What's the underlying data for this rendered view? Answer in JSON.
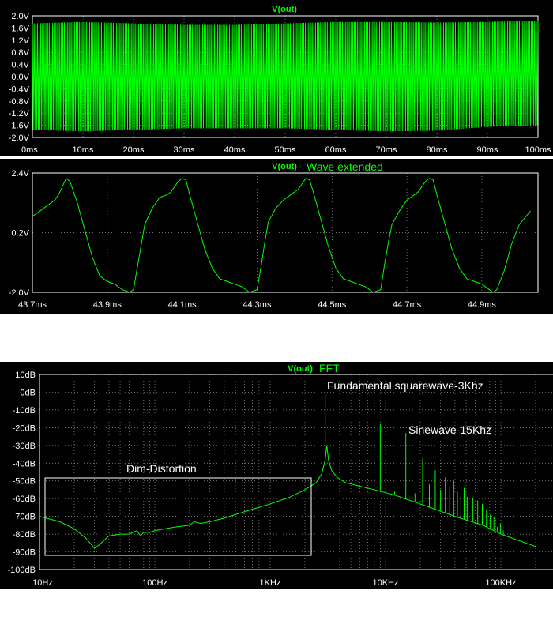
{
  "colors": {
    "trace": "#00ff00",
    "background": "#000000",
    "text": "#ffffff"
  },
  "chart_data": [
    {
      "type": "line",
      "title": "V(out)",
      "xlabel": "",
      "ylabel": "",
      "xlim": [
        0,
        100
      ],
      "ylim": [
        -2.0,
        2.0
      ],
      "x_ticks": [
        "0ms",
        "10ms",
        "20ms",
        "30ms",
        "40ms",
        "50ms",
        "60ms",
        "70ms",
        "80ms",
        "90ms",
        "100ms"
      ],
      "y_ticks": [
        "2.0V",
        "1.6V",
        "1.2V",
        "0.8V",
        "0.4V",
        "0.0V",
        "-0.4V",
        "-0.8V",
        "-1.2V",
        "-1.6V",
        "-2.0V"
      ],
      "grid": true,
      "series": [
        {
          "name": "V(out)",
          "x_ms": [
            0,
            10,
            20,
            30,
            40,
            50,
            60,
            70,
            80,
            90,
            100
          ],
          "peak_v": [
            1.75,
            1.8,
            1.75,
            1.7,
            1.7,
            1.75,
            1.8,
            1.8,
            1.78,
            1.8,
            1.85
          ],
          "trough_v": [
            -1.75,
            -1.8,
            -1.75,
            -1.7,
            -1.7,
            -1.7,
            -1.75,
            -1.8,
            -1.78,
            -1.65,
            -1.6
          ],
          "frequency_hz": 3000
        }
      ]
    },
    {
      "type": "line",
      "title": "V(out)",
      "subtitle": "Wave extended",
      "xlim": [
        43.7,
        45.05
      ],
      "ylim": [
        -2.0,
        2.4
      ],
      "x_ticks": [
        "43.7ms",
        "43.9ms",
        "44.1ms",
        "44.3ms",
        "44.5ms",
        "44.7ms",
        "44.9ms"
      ],
      "y_ticks": [
        "2.4V",
        "0.2V",
        "-2.0V"
      ],
      "grid": true,
      "series": [
        {
          "name": "V(out)",
          "x_ms": [
            43.7,
            43.72,
            43.74,
            43.76,
            43.77,
            43.78,
            43.79,
            43.8,
            43.82,
            43.84,
            43.86,
            43.88,
            43.9,
            43.92,
            43.94,
            43.96,
            43.97,
            43.98,
            43.99,
            44.0,
            44.02,
            44.04,
            44.06,
            44.07,
            44.08,
            44.09,
            44.1,
            44.11,
            44.12,
            44.14,
            44.16,
            44.18,
            44.2,
            44.22,
            44.24,
            44.26,
            44.28,
            44.3,
            44.31,
            44.32,
            44.33,
            44.35,
            44.37,
            44.39,
            44.4,
            44.41,
            44.42,
            44.43,
            44.44,
            44.45,
            44.47,
            44.49,
            44.51,
            44.53,
            44.55,
            44.57,
            44.59,
            44.61,
            44.63,
            44.64,
            44.65,
            44.66,
            44.68,
            44.7,
            44.72,
            44.73,
            44.74,
            44.75,
            44.76,
            44.77,
            44.78,
            44.8,
            44.82,
            44.84,
            44.86,
            44.88,
            44.9,
            44.92,
            44.93,
            44.94,
            44.96,
            44.98,
            45.0,
            45.03
          ],
          "y_v": [
            0.8,
            1.0,
            1.2,
            1.4,
            1.6,
            1.9,
            2.2,
            2.1,
            1.3,
            0.3,
            -0.7,
            -1.4,
            -1.6,
            -1.7,
            -1.9,
            -2.0,
            -1.9,
            -1.1,
            -0.3,
            0.5,
            1.1,
            1.5,
            1.6,
            1.7,
            1.9,
            2.1,
            2.2,
            2.15,
            1.6,
            0.6,
            -0.4,
            -1.1,
            -1.5,
            -1.6,
            -1.7,
            -1.8,
            -2.0,
            -1.9,
            -1.1,
            -0.2,
            0.6,
            1.1,
            1.4,
            1.6,
            1.7,
            1.8,
            2.0,
            2.2,
            2.15,
            1.7,
            0.7,
            -0.3,
            -1.1,
            -1.5,
            -1.6,
            -1.7,
            -1.8,
            -2.0,
            -1.9,
            -1.0,
            -0.2,
            0.5,
            1.0,
            1.4,
            1.6,
            1.7,
            1.9,
            2.1,
            2.2,
            2.15,
            1.6,
            0.6,
            -0.4,
            -1.1,
            -1.5,
            -1.6,
            -1.7,
            -1.9,
            -2.0,
            -1.9,
            -1.2,
            -0.2,
            0.5,
            1.0
          ]
        }
      ]
    },
    {
      "type": "line",
      "title": "V(out)",
      "subtitle": "FFT",
      "x_scale": "log",
      "xlim_hz": [
        10,
        200000
      ],
      "ylim_db": [
        -100,
        10
      ],
      "x_ticks": [
        "10Hz",
        "100Hz",
        "1KHz",
        "10KHz",
        "100KHz"
      ],
      "y_ticks": [
        "10dB",
        "0dB",
        "-10dB",
        "-20dB",
        "-30dB",
        "-40dB",
        "-50dB",
        "-60dB",
        "-70dB",
        "-80dB",
        "-90dB",
        "-100dB"
      ],
      "grid": true,
      "annotations": [
        "Fundamental squarewave-3Khz",
        "Sinewave-15Khz",
        "Dim-Distortion"
      ],
      "series": [
        {
          "name": "V(out)",
          "baseline_hz_db": [
            [
              10,
              -70
            ],
            [
              15,
              -73
            ],
            [
              20,
              -77
            ],
            [
              25,
              -82
            ],
            [
              30,
              -88
            ],
            [
              33,
              -86
            ],
            [
              40,
              -81
            ],
            [
              50,
              -80
            ],
            [
              60,
              -80
            ],
            [
              70,
              -78
            ],
            [
              75,
              -81
            ],
            [
              80,
              -79
            ],
            [
              90,
              -79
            ],
            [
              100,
              -78
            ],
            [
              150,
              -76
            ],
            [
              200,
              -75
            ],
            [
              220,
              -73
            ],
            [
              250,
              -74
            ],
            [
              300,
              -73
            ],
            [
              400,
              -71
            ],
            [
              500,
              -69
            ],
            [
              700,
              -66
            ],
            [
              1000,
              -63
            ],
            [
              1500,
              -59
            ],
            [
              2000,
              -55
            ],
            [
              2500,
              -51
            ],
            [
              2800,
              -46
            ],
            [
              3000,
              -38
            ],
            [
              3100,
              -30
            ],
            [
              3200,
              -38
            ],
            [
              3400,
              -44
            ],
            [
              3800,
              -48
            ],
            [
              4500,
              -51
            ],
            [
              6000,
              -53
            ],
            [
              8000,
              -55
            ],
            [
              12000,
              -58
            ],
            [
              20000,
              -63
            ],
            [
              40000,
              -70
            ],
            [
              70000,
              -75
            ],
            [
              100000,
              -80
            ],
            [
              200000,
              -87
            ]
          ],
          "peaks_hz_db": [
            [
              3000,
              0
            ],
            [
              6000,
              -53
            ],
            [
              9000,
              -18
            ],
            [
              12000,
              -56
            ],
            [
              15000,
              -23
            ],
            [
              18000,
              -57
            ],
            [
              21000,
              -37
            ],
            [
              24000,
              -52
            ],
            [
              27000,
              -44
            ],
            [
              30000,
              -55
            ],
            [
              33000,
              -48
            ],
            [
              36000,
              -53
            ],
            [
              39000,
              -50
            ],
            [
              42000,
              -56
            ],
            [
              45000,
              -57
            ],
            [
              48000,
              -54
            ],
            [
              51000,
              -59
            ],
            [
              57000,
              -60
            ],
            [
              63000,
              -61
            ],
            [
              69000,
              -63
            ],
            [
              75000,
              -66
            ],
            [
              81000,
              -69
            ],
            [
              87000,
              -70
            ],
            [
              93000,
              -76
            ],
            [
              99000,
              -74
            ],
            [
              105000,
              -78
            ]
          ]
        }
      ]
    }
  ]
}
